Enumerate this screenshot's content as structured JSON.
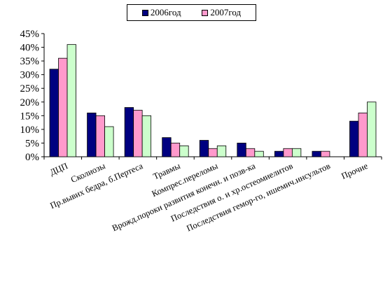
{
  "chart_data": {
    "type": "bar",
    "categories": [
      "ДЦП",
      "Сколиозы",
      "Пр.вывих бедра, б.Пертеса",
      "Травмы",
      "Компрес.переломы",
      "Врожд.пороки развития конечн. и позв-ка",
      "Последствия о. и хр.остеомиелитов",
      "Последствия гемор-го, ишемич.инсультов",
      "Прочие"
    ],
    "series": [
      {
        "name": "2006год",
        "values": [
          32,
          16,
          18,
          7,
          6,
          5,
          2,
          2,
          13
        ]
      },
      {
        "name": "2007год",
        "values": [
          36,
          15,
          17,
          5,
          3,
          3,
          3,
          2,
          16
        ]
      },
      {
        "values": [
          41,
          11,
          15,
          4,
          4,
          2,
          3,
          0,
          20
        ]
      }
    ],
    "ylim": [
      0,
      45
    ],
    "yticks": [
      "0%",
      "5%",
      "10%",
      "15%",
      "20%",
      "25%",
      "30%",
      "35%",
      "40%",
      "45%"
    ],
    "grid": false,
    "legend": "top",
    "colors": [
      "#000080",
      "#FF99CC",
      "#CCFFCC"
    ]
  }
}
